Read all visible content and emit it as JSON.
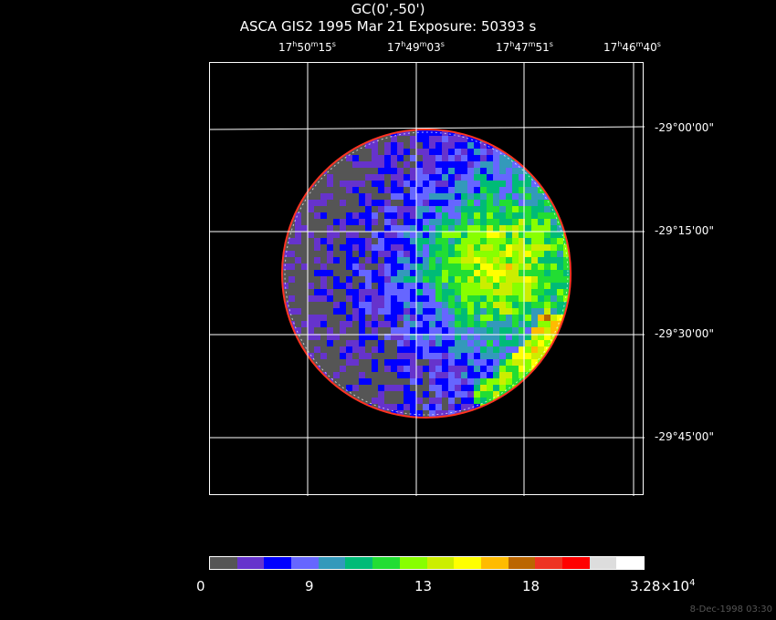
{
  "header": {
    "title_line1": "GC(0',-50')",
    "title_line2": "ASCA GIS2   1995 Mar 21    Exposure: 50393 s"
  },
  "ra_labels": [
    {
      "h": "17",
      "m": "50",
      "s": "15"
    },
    {
      "h": "17",
      "m": "49",
      "s": "03"
    },
    {
      "h": "17",
      "m": "47",
      "s": "51"
    },
    {
      "h": "17",
      "m": "46",
      "s": "40"
    }
  ],
  "dec_labels": [
    "-29°00'00\"",
    "-29°15'00\"",
    "-29°30'00\"",
    "-29°45'00\""
  ],
  "ra_unit_letters": {
    "h": "h",
    "m": "m",
    "s": "s"
  },
  "colorbar": {
    "colors": [
      "#555555",
      "#6633cc",
      "#0000ff",
      "#6666ff",
      "#3399bb",
      "#00bb77",
      "#22dd33",
      "#88ff00",
      "#ccee00",
      "#ffff00",
      "#ffbb00",
      "#bb6600",
      "#ee3322",
      "#ff0000",
      "#dddddd",
      "#ffffff"
    ],
    "tick_labels": [
      "0",
      "9",
      "13",
      "18"
    ],
    "max_label_mantissa": "3.28×10",
    "max_label_exponent": "4"
  },
  "footer": {
    "timestamp": "8-Dec-1998 03:30"
  }
}
